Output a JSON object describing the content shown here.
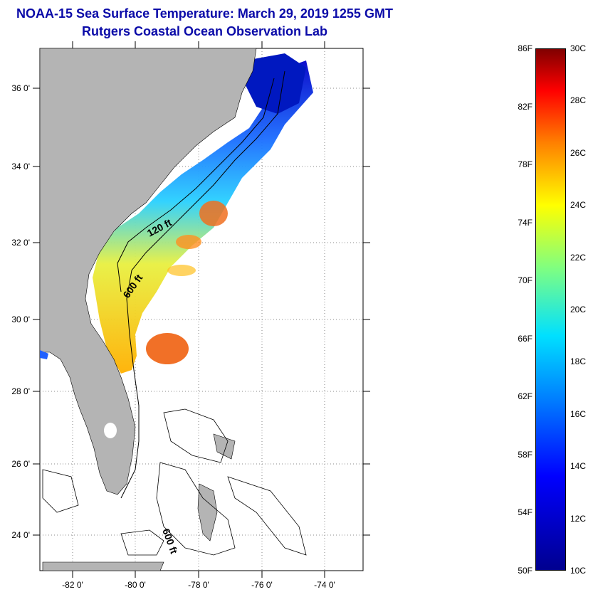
{
  "title": {
    "line1": "NOAA-15 Sea Surface Temperature:  March 29, 2019 1255 GMT",
    "line2": "Rutgers Coastal Ocean Observation Lab"
  },
  "map": {
    "lon_labels": [
      "-82 0'",
      "-80 0'",
      "-78 0'",
      "-76 0'",
      "-74 0'"
    ],
    "lat_labels": [
      "36 0'",
      "34 0'",
      "32 0'",
      "30 0'",
      "28 0'",
      "26 0'",
      "24 0'"
    ],
    "contour_labels": [
      "120 ft",
      "600 ft",
      "600 ft"
    ],
    "land_color": "#b4b4b4"
  },
  "colorbar": {
    "fahrenheit": [
      "86F",
      "82F",
      "78F",
      "74F",
      "70F",
      "66F",
      "62F",
      "58F",
      "54F",
      "50F"
    ],
    "celsius": [
      "30C",
      "28C",
      "26C",
      "24C",
      "22C",
      "20C",
      "18C",
      "16C",
      "14C",
      "12C",
      "10C"
    ],
    "range_f": [
      50,
      86
    ],
    "range_c": [
      10,
      30
    ]
  }
}
